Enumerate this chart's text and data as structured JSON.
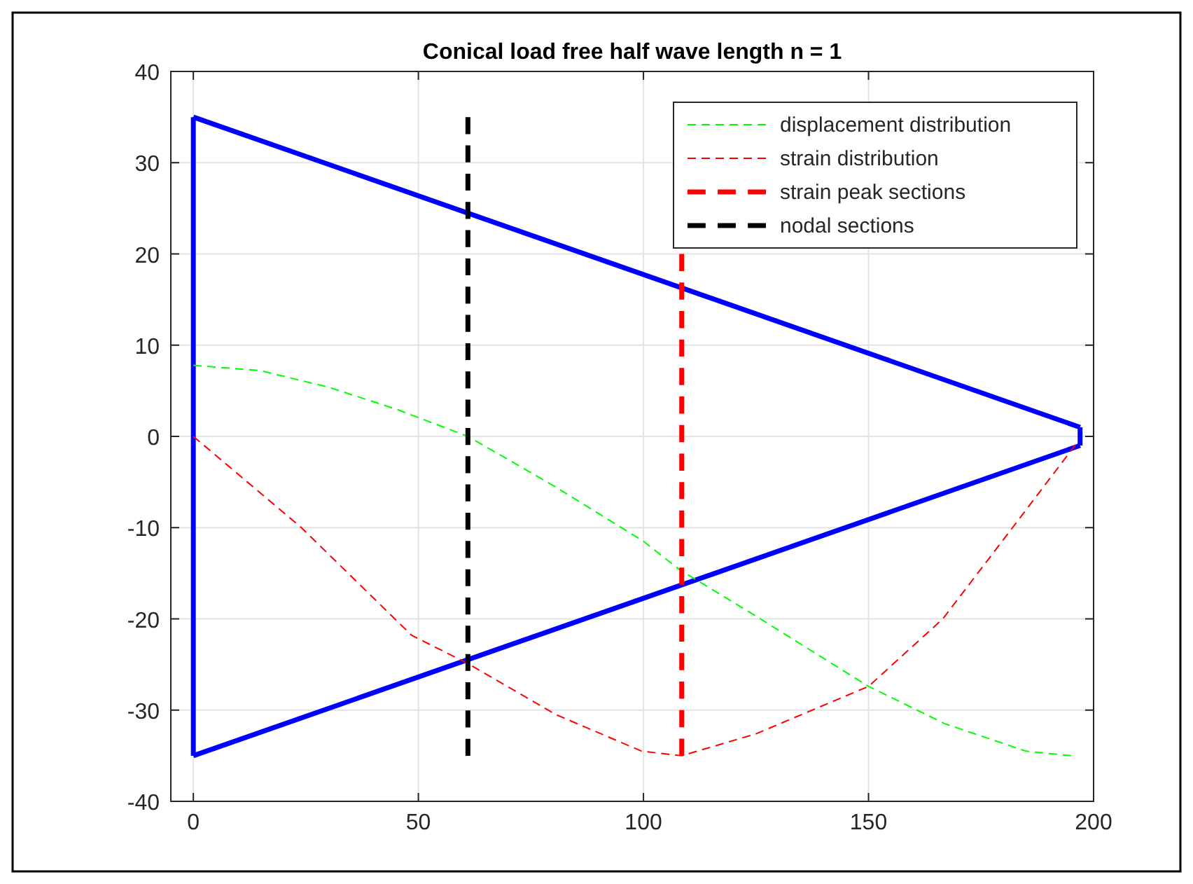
{
  "chart_data": {
    "type": "line",
    "title": "Conical load free half wave length n = 1",
    "xlim": [
      -5,
      200
    ],
    "xticks": [
      0,
      50,
      100,
      150,
      200
    ],
    "ylim": [
      -40,
      40
    ],
    "yticks": [
      -40,
      -30,
      -20,
      -10,
      0,
      10,
      20,
      30,
      40
    ],
    "grid": true,
    "legend": "top right",
    "series": [
      {
        "color": "#0000ff",
        "line_style": "solid",
        "x": [
          0,
          197
        ],
        "values": [
          35,
          1
        ]
      },
      {
        "color": "#0000ff",
        "line_style": "solid",
        "x": [
          197,
          197
        ],
        "values": [
          1,
          -1
        ]
      },
      {
        "color": "#0000ff",
        "line_style": "solid",
        "x": [
          0,
          197
        ],
        "values": [
          -35,
          -1
        ]
      },
      {
        "color": "#0000ff",
        "line_style": "solid",
        "x": [
          0,
          0
        ],
        "values": [
          -35,
          35
        ]
      },
      {
        "name": "displacement distribution",
        "color": "#00ff00",
        "line_style": "dashed",
        "x": [
          0,
          15,
          30,
          45,
          61,
          80,
          100,
          108,
          125,
          150,
          167,
          185,
          195
        ],
        "values": [
          7.8,
          7.2,
          5.4,
          3,
          0,
          -5.4,
          -11.5,
          -14.6,
          -19.7,
          -27.4,
          -31.5,
          -34.5,
          -35
        ]
      },
      {
        "name": "strain distribution",
        "color": "#ff0000",
        "line_style": "dashed",
        "x": [
          0,
          24,
          48.5,
          61,
          80.6,
          99.6,
          108.5,
          125,
          150,
          166.5,
          182,
          196
        ],
        "values": [
          0,
          -10,
          -21.8,
          -24.9,
          -30.5,
          -34.5,
          -35,
          -32.6,
          -27.4,
          -20,
          -10,
          -0.9
        ]
      },
      {
        "name": "strain peak sections",
        "color": "#ff0000",
        "line_style": "dashed",
        "x": [
          108.5,
          108.5
        ],
        "values": [
          -35,
          20
        ]
      },
      {
        "name": "nodal sections",
        "color": "#000000",
        "line_style": "dashed",
        "x": [
          61,
          61
        ],
        "values": [
          -35,
          35
        ]
      }
    ]
  }
}
